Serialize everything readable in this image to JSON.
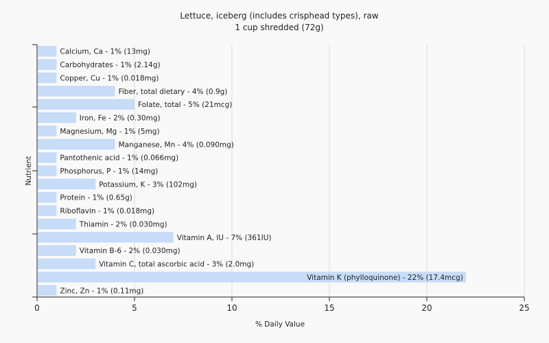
{
  "chart_data": {
    "type": "bar",
    "orientation": "horizontal",
    "title": "Lettuce, iceberg (includes crisphead types), raw",
    "subtitle": "1 cup shredded (72g)",
    "xlabel": "% Daily Value",
    "ylabel": "Nutrient",
    "xlim": [
      0,
      25
    ],
    "xticks": [
      "0",
      "5",
      "10",
      "15",
      "20",
      "25"
    ],
    "grid": true,
    "bar_color": "#c6dcf7",
    "categories": [
      "Calcium, Ca",
      "Carbohydrates",
      "Copper, Cu",
      "Fiber, total dietary",
      "Folate, total",
      "Iron, Fe",
      "Magnesium, Mg",
      "Manganese, Mn",
      "Pantothenic acid",
      "Phosphorus, P",
      "Potassium, K",
      "Protein",
      "Riboflavin",
      "Thiamin",
      "Vitamin A, IU",
      "Vitamin B-6",
      "Vitamin C, total ascorbic acid",
      "Vitamin K (phylloquinone)",
      "Zinc, Zn"
    ],
    "values": [
      1,
      1,
      1,
      4,
      5,
      2,
      1,
      4,
      1,
      1,
      3,
      1,
      1,
      2,
      7,
      2,
      3,
      22,
      1
    ],
    "labels": [
      "Calcium, Ca - 1% (13mg)",
      "Carbohydrates - 1% (2.14g)",
      "Copper, Cu - 1% (0.018mg)",
      "Fiber, total dietary - 4% (0.9g)",
      "Folate, total - 5% (21mcg)",
      "Iron, Fe - 2% (0.30mg)",
      "Magnesium, Mg - 1% (5mg)",
      "Manganese, Mn - 4% (0.090mg)",
      "Pantothenic acid - 1% (0.066mg)",
      "Phosphorus, P - 1% (14mg)",
      "Potassium, K - 3% (102mg)",
      "Protein - 1% (0.65g)",
      "Riboflavin - 1% (0.018mg)",
      "Thiamin - 2% (0.030mg)",
      "Vitamin A, IU - 7% (361IU)",
      "Vitamin B-6 - 2% (0.030mg)",
      "Vitamin C, total ascorbic acid - 3% (2.0mg)",
      "Vitamin K (phylloquinone) - 22% (17.4mcg)",
      "Zinc, Zn - 1% (0.11mg)"
    ]
  }
}
